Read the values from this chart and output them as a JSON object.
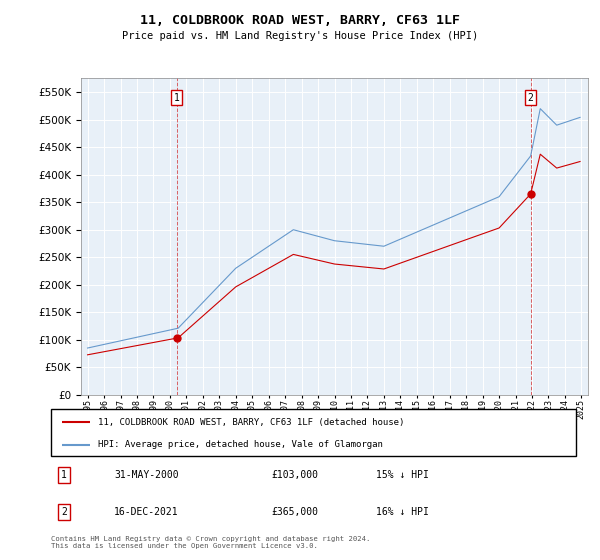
{
  "title": "11, COLDBROOK ROAD WEST, BARRY, CF63 1LF",
  "subtitle": "Price paid vs. HM Land Registry's House Price Index (HPI)",
  "legend_label_red": "11, COLDBROOK ROAD WEST, BARRY, CF63 1LF (detached house)",
  "legend_label_blue": "HPI: Average price, detached house, Vale of Glamorgan",
  "annotation1_label": "1",
  "annotation1_date": "31-MAY-2000",
  "annotation1_price": "£103,000",
  "annotation1_hpi": "15% ↓ HPI",
  "annotation2_label": "2",
  "annotation2_date": "16-DEC-2021",
  "annotation2_price": "£365,000",
  "annotation2_hpi": "16% ↓ HPI",
  "footnote": "Contains HM Land Registry data © Crown copyright and database right 2024.\nThis data is licensed under the Open Government Licence v3.0.",
  "red_color": "#cc0000",
  "blue_color": "#6699cc",
  "chart_bg": "#e8f0f8",
  "ylim": [
    0,
    575000
  ],
  "yticks": [
    0,
    50000,
    100000,
    150000,
    200000,
    250000,
    300000,
    350000,
    400000,
    450000,
    500000,
    550000
  ],
  "xstart_year": 1995,
  "xend_year": 2025,
  "t1_year": 2000.416,
  "t2_year": 2021.916,
  "p1": 103000,
  "p2": 365000,
  "hpi_at_t1": 121000,
  "hpi_at_t2": 434000
}
